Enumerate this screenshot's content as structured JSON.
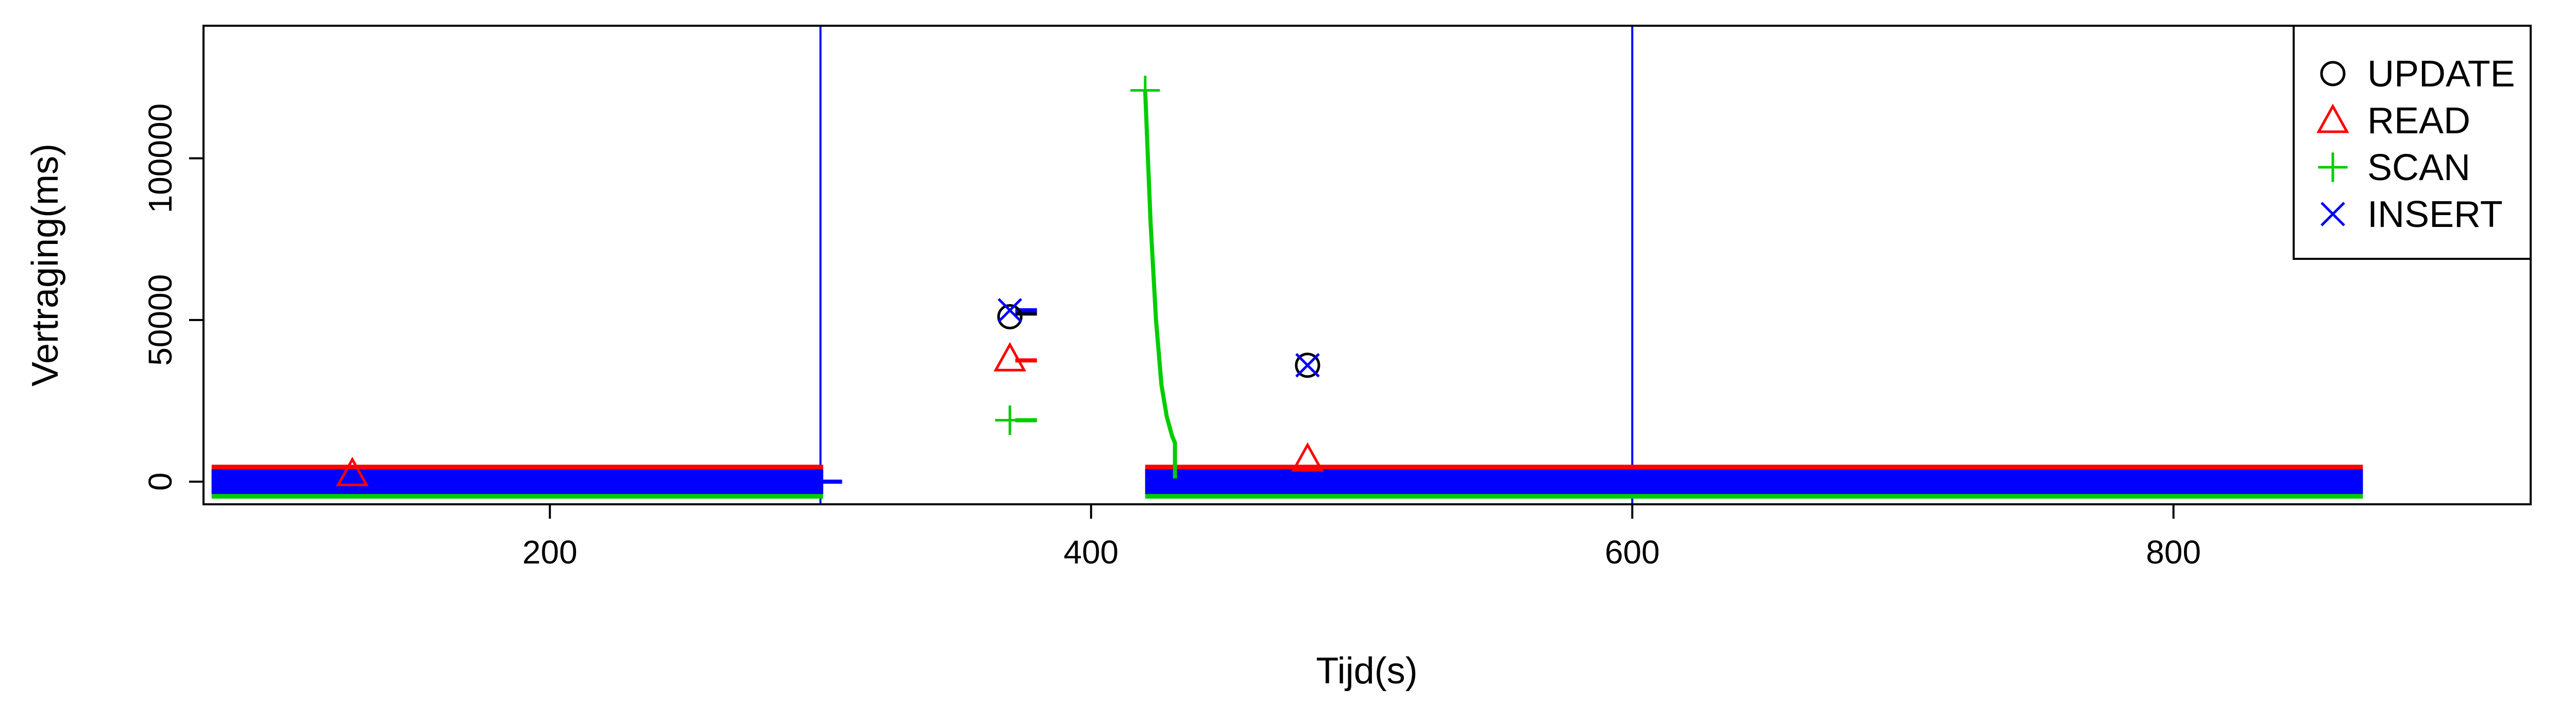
{
  "chart_data": {
    "type": "scatter",
    "title": "",
    "xlabel": "Tijd(s)",
    "ylabel": "Vertraging(ms)",
    "xlim": [
      72,
      932
    ],
    "ylim": [
      -7000,
      141000
    ],
    "x_ticks": [
      200,
      400,
      600,
      800
    ],
    "y_ticks": [
      0,
      50000,
      100000
    ],
    "grid": false,
    "legend_position": "top-right",
    "vertical_lines": [
      {
        "x": 300,
        "color": "#0000ff"
      },
      {
        "x": 600,
        "color": "#0000ff"
      }
    ],
    "series": [
      {
        "name": "UPDATE",
        "marker": "circle",
        "color": "#000000",
        "bands": [
          [
            75,
            301
          ],
          [
            420,
            870
          ]
        ],
        "points": [
          [
            370,
            51000
          ],
          [
            480,
            36000
          ]
        ],
        "lines": [
          [
            [
              372,
              52000
            ],
            [
              380,
              52000
            ]
          ]
        ]
      },
      {
        "name": "READ",
        "marker": "triangle",
        "color": "#ff0000",
        "bands": [
          [
            75,
            301
          ],
          [
            420,
            870
          ]
        ],
        "points": [
          [
            370,
            38000
          ],
          [
            480,
            7000
          ],
          [
            127,
            2500
          ]
        ],
        "lines": [
          [
            [
              372,
              37500
            ],
            [
              380,
              37500
            ]
          ]
        ]
      },
      {
        "name": "SCAN",
        "marker": "plus",
        "color": "#00cd00",
        "bands": [
          [
            75,
            301
          ],
          [
            420,
            870
          ]
        ],
        "points": [
          [
            370,
            19000
          ],
          [
            420,
            121000
          ]
        ],
        "lines": [
          [
            [
              372,
              19000
            ],
            [
              380,
              19000
            ]
          ],
          [
            [
              420,
              121000
            ],
            [
              421,
              100000
            ],
            [
              422,
              80000
            ],
            [
              424,
              50000
            ],
            [
              426,
              30000
            ],
            [
              428,
              20000
            ],
            [
              430,
              14000
            ],
            [
              431,
              12000
            ],
            [
              431,
              1000
            ]
          ]
        ]
      },
      {
        "name": "INSERT",
        "marker": "x",
        "color": "#0000ff",
        "bands": [
          [
            75,
            301
          ],
          [
            420,
            870
          ]
        ],
        "points": [
          [
            370,
            53000
          ],
          [
            480,
            36000
          ]
        ],
        "lines": [
          [
            [
              372,
              53000
            ],
            [
              380,
              53000
            ]
          ],
          [
            [
              300,
              0
            ],
            [
              308,
              0
            ]
          ]
        ]
      }
    ]
  }
}
